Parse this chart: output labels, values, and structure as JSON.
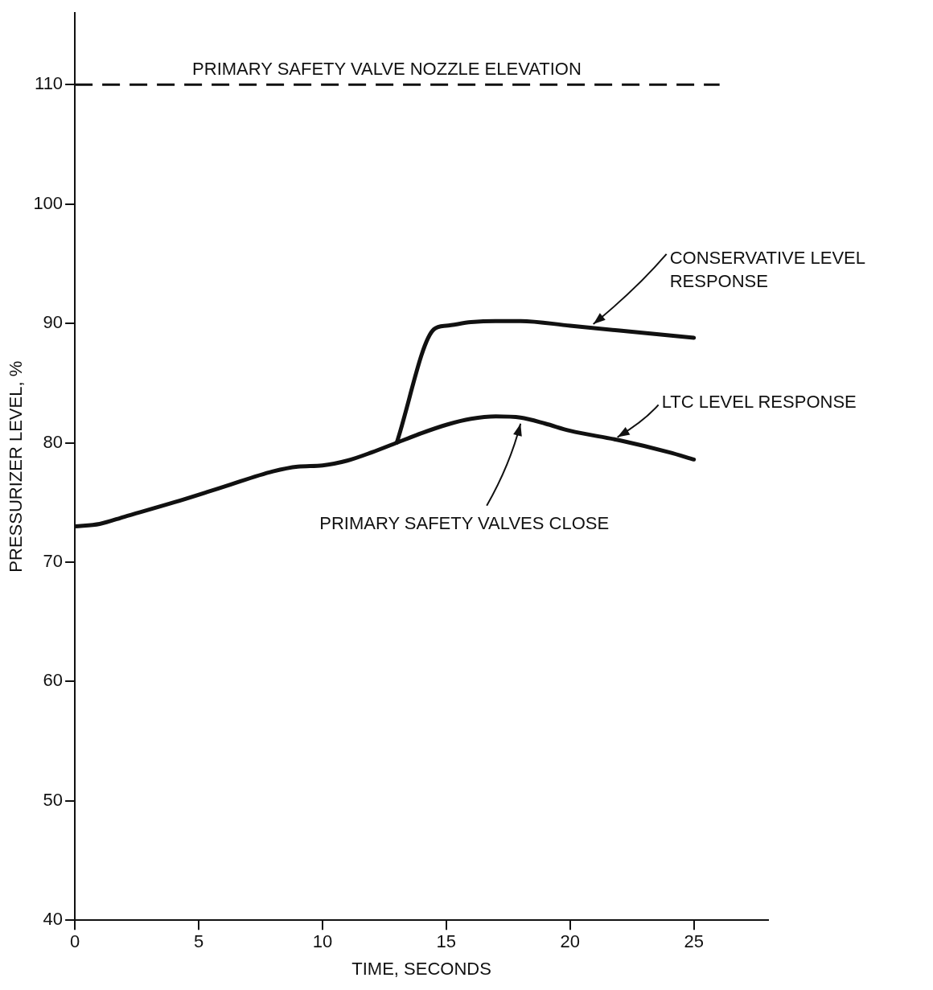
{
  "chart_data": {
    "type": "line",
    "xlabel": "TIME, SECONDS",
    "ylabel": "PRESSURIZER LEVEL, %",
    "xlim": [
      0,
      28
    ],
    "xticks": [
      0,
      5,
      10,
      15,
      20,
      25
    ],
    "ylim": [
      40,
      116
    ],
    "yticks": [
      40,
      50,
      60,
      70,
      80,
      90,
      100,
      110
    ],
    "grid": false,
    "legend": false,
    "marker": "none",
    "line_style": "solid",
    "series": [
      {
        "name": "CONSERVATIVE LEVEL RESPONSE",
        "color": "#111111",
        "x": [
          13,
          14.5,
          15,
          16,
          17,
          18,
          20,
          22,
          24,
          25
        ],
        "values": [
          80,
          89.5,
          89.8,
          90.1,
          90.2,
          90.2,
          89.8,
          89.4,
          89,
          88.8
        ]
      },
      {
        "name": "LTC LEVEL RESPONSE",
        "color": "#111111",
        "x": [
          0,
          1,
          2,
          4,
          6,
          8,
          9,
          10,
          11,
          12,
          13,
          14,
          15,
          16,
          17,
          18,
          19,
          20,
          22,
          24,
          25
        ],
        "values": [
          73,
          73.2,
          73.8,
          75,
          76.3,
          77.6,
          78,
          78.1,
          78.5,
          79.2,
          80,
          80.8,
          81.5,
          82,
          82.2,
          82.1,
          81.6,
          81,
          80.2,
          79.2,
          78.6
        ]
      }
    ],
    "ref_lines": [
      {
        "axis": "y",
        "value": 110,
        "label": "PRIMARY SAFETY VALVE NOZZLE ELEVATION",
        "color": "#111111",
        "line_style": "dashed"
      }
    ],
    "annotations": [
      {
        "text": "PRIMARY SAFETY VALVES CLOSE",
        "x": 18,
        "y": 82
      }
    ]
  }
}
